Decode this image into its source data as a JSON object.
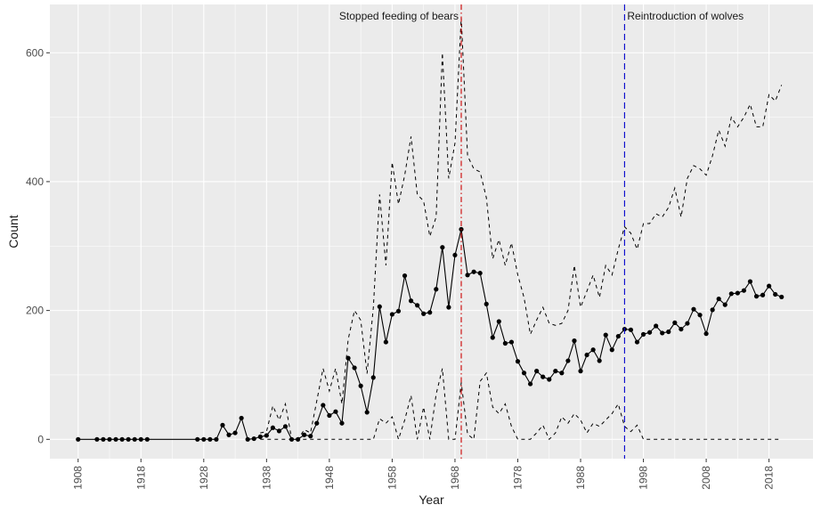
{
  "chart_data": {
    "type": "line",
    "xlabel": "Year",
    "ylabel": "Count",
    "xlim": [
      1903.5,
      2025
    ],
    "ylim": [
      -30,
      675
    ],
    "x_ticks": [
      1908,
      1918,
      1928,
      1938,
      1948,
      1958,
      1968,
      1978,
      1988,
      1998,
      2008,
      2018
    ],
    "y_ticks": [
      0,
      200,
      400,
      600
    ],
    "grid": true,
    "colors": {
      "panel": "#ebebeb",
      "grid_major": "#ffffff",
      "series": "#000000",
      "feeding_line": "#cc0000",
      "wolves_line": "#0000cc"
    },
    "annotations": [
      {
        "x": 1969,
        "label": "Stopped feeding of bears",
        "color": "#cc0000",
        "style": "dash-dot",
        "text_side": "left"
      },
      {
        "x": 1995,
        "label": "Reintroduction of wolves",
        "color": "#0000cc",
        "style": "dashed",
        "text_side": "right"
      }
    ],
    "series": [
      {
        "style": "solid-points",
        "x": [
          1908,
          1911,
          1912,
          1913,
          1914,
          1915,
          1916,
          1917,
          1918,
          1919,
          1927,
          1928,
          1929,
          1930,
          1931,
          1932,
          1933,
          1934,
          1935,
          1936,
          1937,
          1938,
          1939,
          1940,
          1941,
          1942,
          1943,
          1944,
          1945,
          1946,
          1947,
          1948,
          1949,
          1950,
          1951,
          1952,
          1953,
          1954,
          1955,
          1956,
          1957,
          1958,
          1959,
          1960,
          1961,
          1962,
          1963,
          1964,
          1965,
          1966,
          1967,
          1968,
          1969,
          1970,
          1971,
          1972,
          1973,
          1974,
          1975,
          1976,
          1977,
          1978,
          1979,
          1980,
          1981,
          1982,
          1983,
          1984,
          1985,
          1986,
          1987,
          1988,
          1989,
          1990,
          1991,
          1992,
          1993,
          1994,
          1995,
          1996,
          1997,
          1998,
          1999,
          2000,
          2001,
          2002,
          2003,
          2004,
          2005,
          2006,
          2007,
          2008,
          2009,
          2010,
          2011,
          2012,
          2013,
          2014,
          2015,
          2016,
          2017,
          2018,
          2019,
          2020
        ],
        "y": [
          0,
          0,
          0,
          0,
          0,
          0,
          0,
          0,
          0,
          0,
          0,
          0,
          0,
          0,
          22,
          7,
          10,
          33,
          0,
          1,
          4,
          6,
          18,
          13,
          20,
          0,
          0,
          7,
          5,
          25,
          53,
          37,
          43,
          25,
          126,
          111,
          83,
          42,
          96,
          206,
          151,
          194,
          199,
          254,
          215,
          208,
          195,
          197,
          233,
          298,
          205,
          286,
          326,
          255,
          260,
          258,
          210,
          158,
          183,
          149,
          151,
          121,
          103,
          86,
          106,
          97,
          93,
          106,
          103,
          122,
          153,
          106,
          131,
          139,
          122,
          162,
          139,
          160,
          171,
          170,
          151,
          163,
          166,
          176,
          165,
          167,
          181,
          171,
          180,
          202,
          193,
          164,
          201,
          218,
          209,
          226,
          227,
          231,
          245,
          222,
          224,
          238,
          225,
          221
        ]
      },
      {
        "style": "dashed-upper",
        "x": [
          1937,
          1938,
          1939,
          1940,
          1941,
          1942,
          1943,
          1944,
          1945,
          1946,
          1947,
          1948,
          1949,
          1950,
          1951,
          1952,
          1953,
          1954,
          1955,
          1956,
          1957,
          1958,
          1959,
          1960,
          1961,
          1962,
          1963,
          1964,
          1965,
          1966,
          1967,
          1968,
          1969,
          1970,
          1971,
          1972,
          1973,
          1974,
          1975,
          1976,
          1977,
          1978,
          1979,
          1980,
          1981,
          1982,
          1983,
          1984,
          1985,
          1986,
          1987,
          1988,
          1989,
          1990,
          1991,
          1992,
          1993,
          1994,
          1995,
          1996,
          1997,
          1998,
          1999,
          2000,
          2001,
          2002,
          2003,
          2004,
          2005,
          2006,
          2007,
          2008,
          2009,
          2010,
          2011,
          2012,
          2013,
          2014,
          2015,
          2016,
          2017,
          2018,
          2019,
          2020
        ],
        "y": [
          10,
          12,
          52,
          30,
          55,
          0,
          0,
          15,
          10,
          60,
          110,
          75,
          110,
          55,
          155,
          200,
          185,
          102,
          205,
          380,
          270,
          430,
          365,
          410,
          470,
          380,
          370,
          315,
          345,
          600,
          405,
          460,
          655,
          440,
          420,
          415,
          375,
          280,
          310,
          270,
          305,
          255,
          220,
          163,
          185,
          205,
          180,
          177,
          180,
          200,
          270,
          205,
          230,
          255,
          220,
          270,
          255,
          295,
          330,
          320,
          295,
          335,
          335,
          350,
          345,
          360,
          390,
          345,
          405,
          425,
          420,
          410,
          440,
          480,
          455,
          500,
          485,
          500,
          520,
          485,
          485,
          535,
          525,
          550
        ]
      },
      {
        "style": "dashed-lower",
        "x": [
          1937,
          1938,
          1939,
          1940,
          1941,
          1942,
          1943,
          1944,
          1945,
          1946,
          1947,
          1948,
          1949,
          1950,
          1951,
          1952,
          1953,
          1954,
          1955,
          1956,
          1957,
          1958,
          1959,
          1960,
          1961,
          1962,
          1963,
          1964,
          1965,
          1966,
          1967,
          1968,
          1969,
          1970,
          1971,
          1972,
          1973,
          1974,
          1975,
          1976,
          1977,
          1978,
          1979,
          1980,
          1981,
          1982,
          1983,
          1984,
          1985,
          1986,
          1987,
          1988,
          1989,
          1990,
          1991,
          1992,
          1993,
          1994,
          1995,
          1996,
          1997,
          1998,
          1999,
          2000,
          2001,
          2002,
          2003,
          2004,
          2005,
          2006,
          2007,
          2008,
          2009,
          2010,
          2011,
          2012,
          2013,
          2014,
          2015,
          2016,
          2017,
          2018,
          2019,
          2020
        ],
        "y": [
          0,
          0,
          0,
          0,
          0,
          0,
          0,
          0,
          0,
          0,
          0,
          0,
          0,
          0,
          0,
          0,
          0,
          0,
          0,
          32,
          25,
          35,
          0,
          30,
          68,
          0,
          50,
          0,
          70,
          110,
          0,
          0,
          88,
          8,
          0,
          90,
          103,
          50,
          40,
          55,
          20,
          0,
          0,
          0,
          10,
          22,
          0,
          10,
          35,
          25,
          40,
          30,
          10,
          25,
          20,
          30,
          40,
          55,
          20,
          12,
          22,
          0,
          0,
          0,
          0,
          0,
          0,
          0,
          0,
          0,
          0,
          0,
          0,
          0,
          0,
          0,
          0,
          0,
          0,
          0,
          0,
          0,
          0,
          0
        ]
      }
    ]
  }
}
